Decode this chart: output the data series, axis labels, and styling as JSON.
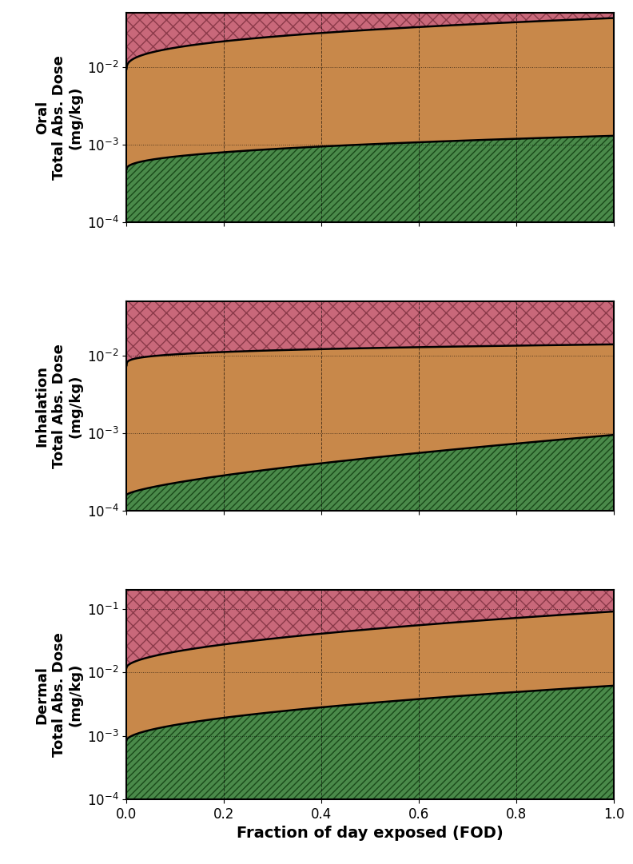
{
  "panels": [
    {
      "ylabel": "Oral\nTotal Abs. Dose\n(mg/kg)",
      "ylim": [
        0.0001,
        0.05
      ],
      "yticks": [
        0.0001,
        0.001,
        0.01
      ],
      "upper_v0": 0.0095,
      "upper_v1": 0.043,
      "upper_power": 0.38,
      "lower_v0": 0.00048,
      "lower_v1": 0.0013,
      "lower_power": 0.42
    },
    {
      "ylabel": "Inhalation\nTotal Abs. Dose\n(mg/kg)",
      "ylim": [
        0.0001,
        0.05
      ],
      "yticks": [
        0.0001,
        0.001,
        0.01
      ],
      "upper_v0": 0.0075,
      "upper_v1": 0.014,
      "upper_power": 0.28,
      "lower_v0": 0.00016,
      "lower_v1": 0.00095,
      "lower_power": 0.7
    },
    {
      "ylabel": "Dermal\nTotal Abs. Dose\n(mg/kg)",
      "ylim": [
        0.0001,
        0.2
      ],
      "yticks": [
        0.0001,
        0.001,
        0.01,
        0.1
      ],
      "upper_v0": 0.012,
      "upper_v1": 0.092,
      "upper_power": 0.55,
      "lower_v0": 0.00085,
      "lower_v1": 0.0062,
      "lower_power": 0.55
    }
  ],
  "color_pink": "#c9687a",
  "color_orange": "#c8884a",
  "color_green": "#4a8a4a",
  "color_line": "#000000",
  "xlabel": "Fraction of day exposed (FOD)",
  "figsize": [
    7.92,
    10.81
  ],
  "dpi": 100
}
